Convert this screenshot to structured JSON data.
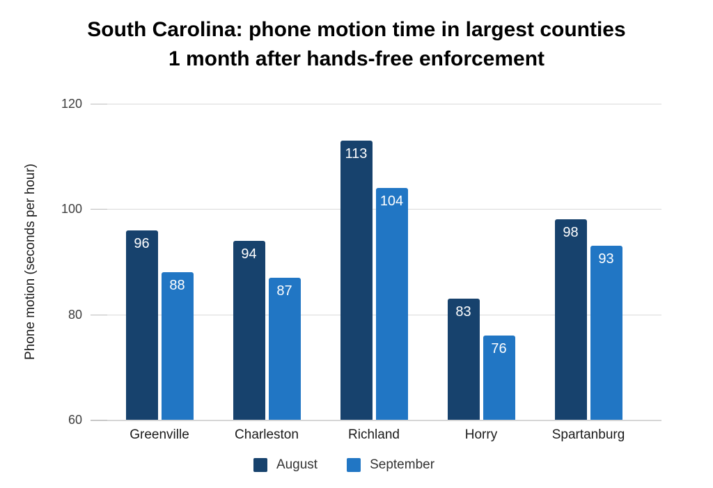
{
  "header": {
    "title_line1": "South Carolina: phone motion time in largest counties",
    "title_line2": "1 month after hands-free enforcement"
  },
  "chart_data": {
    "type": "bar",
    "title": "South Carolina: phone motion time in largest counties 1 month after hands-free enforcement",
    "categories": [
      "Greenville",
      "Charleston",
      "Richland",
      "Horry",
      "Spartanburg"
    ],
    "series": [
      {
        "name": "August",
        "color": "#17426d",
        "values": [
          96,
          94,
          113,
          83,
          98
        ]
      },
      {
        "name": "September",
        "color": "#2176c4",
        "values": [
          88,
          87,
          104,
          76,
          93
        ]
      }
    ],
    "xlabel": "",
    "ylabel": "Phone motion (seconds per hour)",
    "ylim": [
      60,
      120
    ],
    "yticks": [
      120,
      100,
      80,
      60
    ],
    "grid": true,
    "legend_position": "bottom",
    "value_labels": true,
    "value_label_color": "#ffffff",
    "background_color": "#ffffff",
    "gridline_color": "#d9d9d9"
  }
}
